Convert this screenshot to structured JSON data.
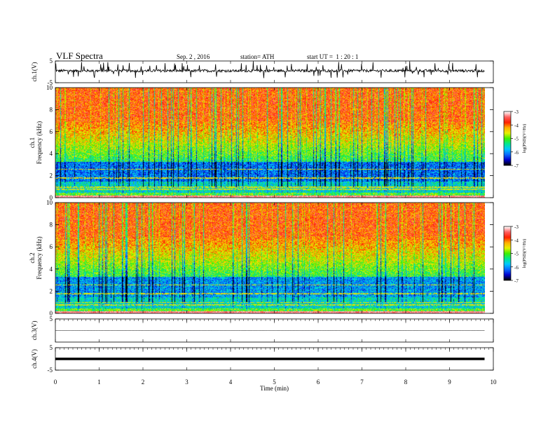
{
  "header": {
    "title": "VLF Spectra",
    "date": "Sep. 2 , 2016",
    "station": "station= ATH",
    "start": "start UT =  1 : 20 : 1"
  },
  "colors": {
    "frame": "#000000",
    "trace": "#000000",
    "cmap": [
      "#000000",
      "#0000d0",
      "#0a6cff",
      "#00c8ff",
      "#00e890",
      "#40f000",
      "#e8f000",
      "#ffb000",
      "#ff2000",
      "#ff6060",
      "#ffffff"
    ]
  },
  "chart_data": [
    {
      "type": "line",
      "ylabel": "ch.1(V)",
      "ylim": [
        -5,
        5
      ],
      "yticks": [
        -5,
        5
      ],
      "description_values": {
        "baseline": 0.5,
        "spread": 1.2
      }
    },
    {
      "type": "heatmap",
      "ylabel": "ch.1 Frequency (kHz)",
      "ylim": [
        0,
        10
      ],
      "yticks": [
        0,
        2,
        4,
        6,
        8,
        10
      ],
      "colorbar": {
        "label": "log(PSD)(V²/Hz)",
        "range": [
          -7,
          -3
        ],
        "ticks": [
          -7,
          -6,
          -5,
          -4,
          -3
        ]
      }
    },
    {
      "type": "heatmap",
      "ylabel": "ch.2 Frequency (kHz)",
      "ylim": [
        0,
        10
      ],
      "yticks": [
        0,
        2,
        4,
        6,
        8,
        10
      ],
      "colorbar": {
        "label": "log(PSD)(V²/Hz)",
        "range": [
          -7,
          -3
        ],
        "ticks": [
          -7,
          -6,
          -5,
          -4,
          -3
        ]
      }
    },
    {
      "type": "line",
      "ylabel": "ch.3(V)",
      "ylim": [
        -5,
        5
      ],
      "yticks": [
        5
      ],
      "description_values": {
        "baseline": 0.0
      }
    },
    {
      "type": "line",
      "ylabel": "ch.4(V)",
      "ylim": [
        -5,
        5
      ],
      "yticks": [
        -5,
        5
      ],
      "description_values": {
        "baseline": 0.0
      }
    }
  ],
  "xaxis": {
    "label": "Time (min)",
    "range": [
      0,
      10
    ],
    "ticks": [
      0,
      1,
      2,
      3,
      4,
      5,
      6,
      7,
      8,
      9,
      10
    ],
    "data_end": 9.8
  }
}
